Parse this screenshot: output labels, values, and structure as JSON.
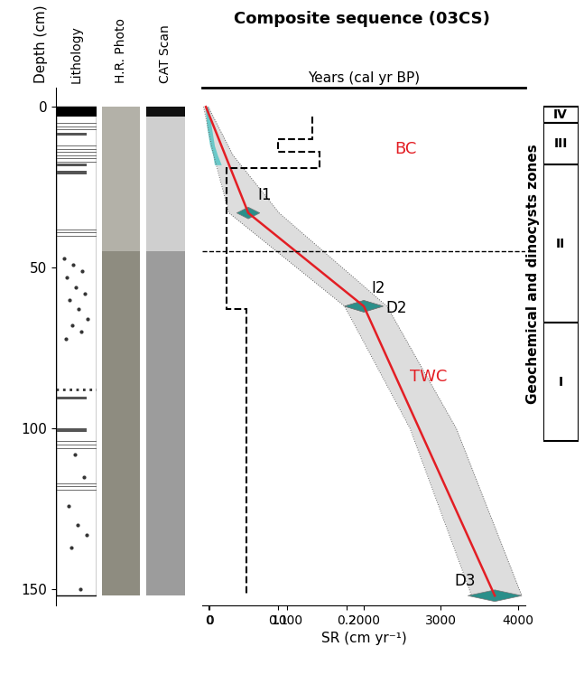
{
  "chart_data": {
    "type": "line",
    "title": "Composite sequence (03CS)",
    "x_label": "Years (cal yr BP)",
    "xlim": [
      -100,
      4100
    ],
    "xticks": [
      0,
      1000,
      2000,
      3000,
      4000
    ],
    "y_label": "Depth (cm)",
    "ylim": [
      155,
      -6
    ],
    "yticks": [
      0,
      50,
      100,
      150
    ],
    "x2_label": "SR (cm yr⁻¹)",
    "x2lim": [
      -0.01,
      0.46
    ],
    "x2ticks": [
      0,
      0.1,
      0.2
    ],
    "column_labels": [
      "Lithology",
      "H.R. Photo",
      "CAT Scan"
    ],
    "age_model": {
      "years": [
        -50,
        500,
        2000,
        3700
      ],
      "depth": [
        0,
        33,
        62,
        152
      ],
      "color": "#e31e24"
    },
    "uncertainty": {
      "depth": [
        0,
        15,
        33,
        62,
        100,
        152
      ],
      "years_min": [
        -80,
        50,
        250,
        1750,
        2600,
        3400
      ],
      "years_max": [
        -20,
        300,
        900,
        2300,
        3200,
        4050
      ]
    },
    "surface_dates": {
      "depth": [
        0,
        3,
        6,
        9,
        12,
        15,
        18
      ],
      "years_min": [
        -60,
        -50,
        -40,
        -20,
        0,
        40,
        60
      ],
      "years_max": [
        -20,
        0,
        20,
        40,
        60,
        100,
        150
      ],
      "color": "#4dc4c4"
    },
    "dates": [
      {
        "label": "I1",
        "year": 500,
        "depth": 33,
        "error": 150
      },
      {
        "label": "I2",
        "year": 2000,
        "depth": 62,
        "error": 250
      },
      {
        "label": "D2",
        "year": 2000,
        "depth": 62,
        "error": 250
      },
      {
        "label": "D3",
        "year": 3700,
        "depth": 152,
        "error": 350
      }
    ],
    "date_color": "#2a8f8a",
    "sr": {
      "depth_edges": [
        3,
        10,
        14,
        19,
        63,
        152
      ],
      "values": [
        0.15,
        0.1,
        0.16,
        0.025,
        0.055
      ]
    },
    "boundary_depth": 45,
    "water_masses": [
      {
        "text": "BC",
        "year": 2400,
        "depth": 13
      },
      {
        "text": "TWC",
        "year": 2600,
        "depth": 84
      }
    ],
    "water_mass_color": "#e31e24",
    "zones_title": "Geochemical and dinocysts zones",
    "zones": [
      {
        "label": "IV",
        "top": 0,
        "bottom": 5
      },
      {
        "label": "III",
        "top": 5,
        "bottom": 18
      },
      {
        "label": "II",
        "top": 18,
        "bottom": 67
      },
      {
        "label": "I",
        "top": 67,
        "bottom": 104
      }
    ],
    "lithology": {
      "core_top": 0,
      "core_bottom": 152,
      "top_layer": [
        0,
        3
      ],
      "laminae": [
        5,
        6,
        7,
        12,
        13,
        14,
        15,
        16,
        17,
        38,
        39,
        40,
        104,
        105,
        106,
        117,
        118,
        119
      ],
      "bands": [
        [
          8,
          9
        ],
        [
          17.5,
          18.5
        ],
        [
          20,
          21
        ],
        [
          90,
          91
        ],
        [
          100,
          101
        ]
      ],
      "dotted_layer": 88,
      "dots": [
        47,
        49,
        51,
        53,
        56,
        58,
        60,
        63,
        66,
        68,
        70,
        72,
        108,
        115,
        124,
        130,
        133,
        137,
        150
      ]
    }
  }
}
